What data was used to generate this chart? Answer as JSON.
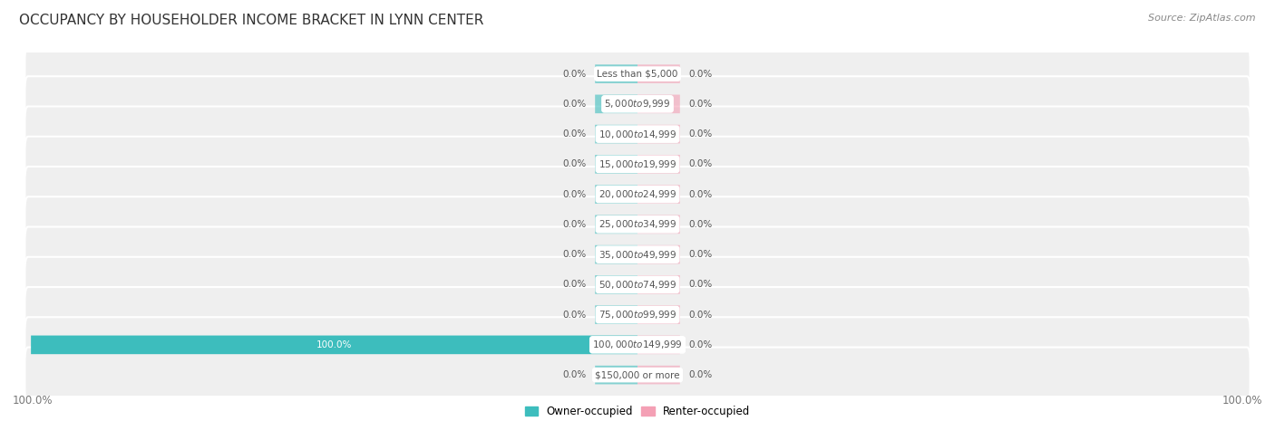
{
  "title": "OCCUPANCY BY HOUSEHOLDER INCOME BRACKET IN LYNN CENTER",
  "source": "Source: ZipAtlas.com",
  "categories": [
    "Less than $5,000",
    "$5,000 to $9,999",
    "$10,000 to $14,999",
    "$15,000 to $19,999",
    "$20,000 to $24,999",
    "$25,000 to $34,999",
    "$35,000 to $49,999",
    "$50,000 to $74,999",
    "$75,000 to $99,999",
    "$100,000 to $149,999",
    "$150,000 or more"
  ],
  "owner_values": [
    0.0,
    0.0,
    0.0,
    0.0,
    0.0,
    0.0,
    0.0,
    0.0,
    0.0,
    100.0,
    0.0
  ],
  "renter_values": [
    0.0,
    0.0,
    0.0,
    0.0,
    0.0,
    0.0,
    0.0,
    0.0,
    0.0,
    0.0,
    0.0
  ],
  "owner_color": "#3dbdbd",
  "renter_color": "#f4a0b5",
  "row_bg_color": "#efefef",
  "row_bg_alt_color": "#e8e8e8",
  "label_box_color": "#ffffff",
  "label_text_color": "#555555",
  "bar_text_color_inside": "#ffffff",
  "bar_text_color_outside": "#555555",
  "title_color": "#333333",
  "source_color": "#888888",
  "bottom_label_color": "#777777",
  "legend_owner": "Owner-occupied",
  "legend_renter": "Renter-occupied",
  "x_left_label": "100.0%",
  "x_right_label": "100.0%",
  "stub_size": 7.0,
  "full_scale": 100.0,
  "bar_height": 0.62,
  "row_padding": 0.08
}
